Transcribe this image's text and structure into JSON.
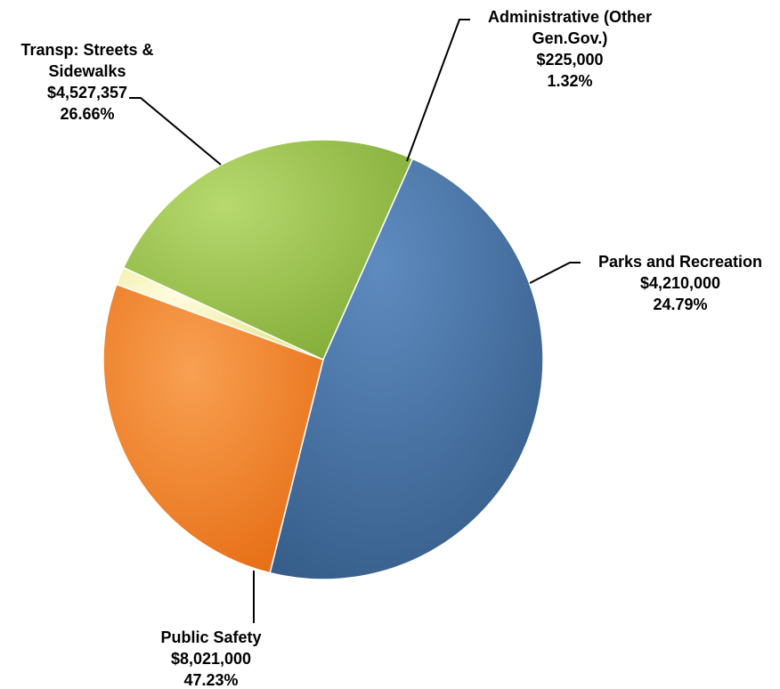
{
  "chart_data": {
    "type": "pie",
    "title": "",
    "slices": [
      {
        "name": "Administrative (Other Gen.Gov.)",
        "label_lines": [
          "Administrative (Other",
          "Gen.Gov.)"
        ],
        "amount": 225000,
        "amount_label": "$225,000",
        "percent": 1.32,
        "percent_label": "1.32%",
        "color": "#F2EFA6"
      },
      {
        "name": "Parks and Recreation",
        "label_lines": [
          "Parks and Recreation"
        ],
        "amount": 4210000,
        "amount_label": "$4,210,000",
        "percent": 24.79,
        "percent_label": "24.79%",
        "color": "#8CB83F"
      },
      {
        "name": "Public Safety",
        "label_lines": [
          "Public Safety"
        ],
        "amount": 8021000,
        "amount_label": "$8,021,000",
        "percent": 47.23,
        "percent_label": "47.23%",
        "color": "#3F6A9B"
      },
      {
        "name": "Transp: Streets & Sidewalks",
        "label_lines": [
          "Transp: Streets &",
          "Sidewalks"
        ],
        "amount": 4527357,
        "amount_label": "$4,527,357",
        "percent": 26.66,
        "percent_label": "26.66%",
        "color": "#F0771C"
      }
    ],
    "legend": "none"
  }
}
